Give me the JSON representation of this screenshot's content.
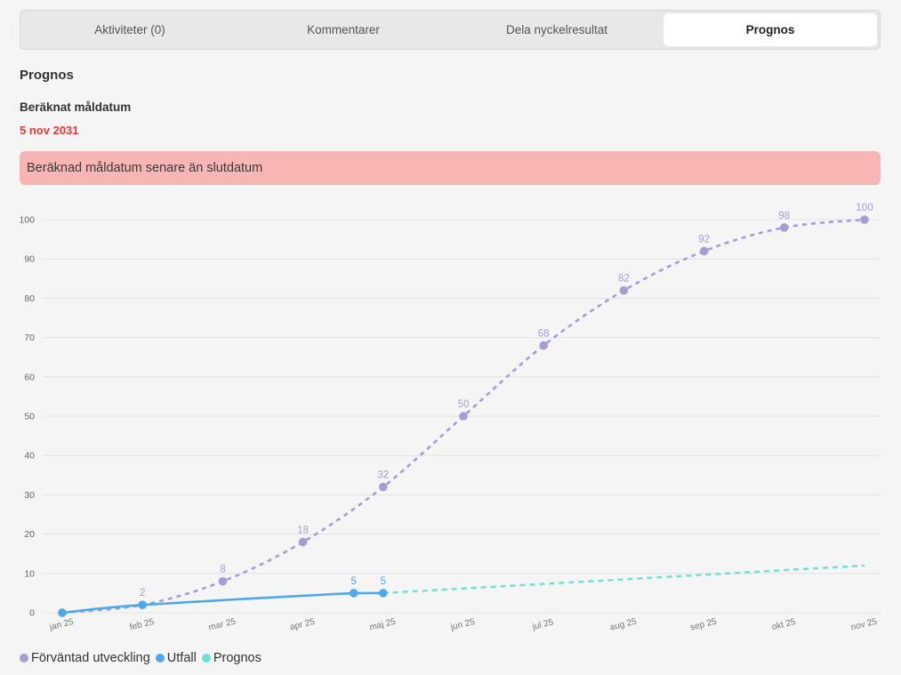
{
  "tabs": [
    {
      "label": "Aktiviteter (0)",
      "active": false
    },
    {
      "label": "Kommentarer",
      "active": false
    },
    {
      "label": "Dela nyckelresultat",
      "active": false
    },
    {
      "label": "Prognos",
      "active": true
    }
  ],
  "section_title": "Prognos",
  "estimated": {
    "label": "Beräknat måldatum",
    "date": "5 nov 2031",
    "date_color": "#e53935"
  },
  "alert": {
    "text": "Beräknad måldatum senare än slutdatum",
    "background": "#f7b6b4"
  },
  "chart_data": {
    "type": "line",
    "categories": [
      "jan 25",
      "feb 25",
      "mar 25",
      "apr 25",
      "maj 25",
      "jun 25",
      "jul 25",
      "aug 25",
      "sep 25",
      "okt 25",
      "nov 25"
    ],
    "ylim": [
      0,
      100
    ],
    "yticks": [
      0,
      10,
      20,
      30,
      40,
      50,
      60,
      70,
      80,
      90,
      100
    ],
    "grid": true,
    "legend_position": "bottom-left",
    "series": [
      {
        "name": "Förväntad utveckling",
        "color": "#a89bd6",
        "style": "dashed",
        "points": [
          {
            "x": "jan 25",
            "y": 0,
            "label": ""
          },
          {
            "x": "feb 25",
            "y": 2,
            "label": "2"
          },
          {
            "x": "mar 25",
            "y": 8,
            "label": "8"
          },
          {
            "x": "apr 25",
            "y": 18,
            "label": "18"
          },
          {
            "x": "maj 25",
            "y": 32,
            "label": "32"
          },
          {
            "x": "jun 25",
            "y": 50,
            "label": "50"
          },
          {
            "x": "jul 25",
            "y": 68,
            "label": "68"
          },
          {
            "x": "aug 25",
            "y": 82,
            "label": "82"
          },
          {
            "x": "sep 25",
            "y": 92,
            "label": "92"
          },
          {
            "x": "okt 25",
            "y": 98,
            "label": "98"
          },
          {
            "x": "nov 25",
            "y": 100,
            "label": "100"
          }
        ]
      },
      {
        "name": "Utfall",
        "color": "#4ea9ec",
        "style": "solid",
        "points": [
          {
            "date": "2025-01-01",
            "y": 0,
            "label": ""
          },
          {
            "date": "2025-02-01",
            "y": 2,
            "label": ""
          },
          {
            "date": "2025-04-20",
            "y": 5,
            "label": "5"
          },
          {
            "date": "2025-05-01",
            "y": 5,
            "label": "5"
          }
        ]
      },
      {
        "name": "Prognos",
        "color": "#6fe0d6",
        "style": "dashed",
        "points": [
          {
            "x": "maj 25",
            "y": 5
          },
          {
            "x": "nov 25",
            "y": 12
          }
        ]
      }
    ]
  }
}
